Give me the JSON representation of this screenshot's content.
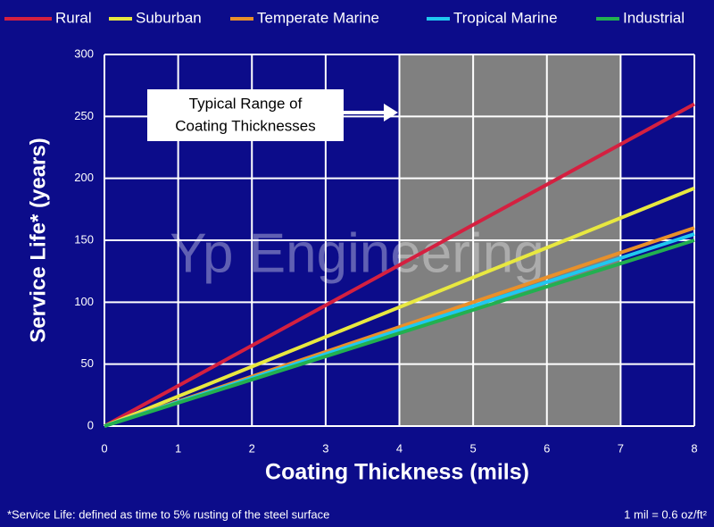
{
  "chart_data": {
    "type": "line",
    "x": [
      0,
      8
    ],
    "series": [
      {
        "name": "Rural",
        "color": "#d42040",
        "values": [
          0,
          260
        ]
      },
      {
        "name": "Suburban",
        "color": "#e8e840",
        "values": [
          0,
          192
        ]
      },
      {
        "name": "Temperate Marine",
        "color": "#e8902a",
        "values": [
          0,
          160
        ]
      },
      {
        "name": "Tropical Marine",
        "color": "#20c8f0",
        "values": [
          0,
          155
        ]
      },
      {
        "name": "Industrial",
        "color": "#22b050",
        "values": [
          0,
          150
        ]
      }
    ],
    "xlim": [
      0,
      8
    ],
    "xticks": [
      0,
      1,
      2,
      3,
      4,
      5,
      6,
      7,
      8
    ],
    "ylim": [
      0,
      300
    ],
    "yticks": [
      0,
      50,
      100,
      150,
      200,
      250,
      300
    ],
    "grid": true,
    "x_label": "Coating Thickness (mils)",
    "y_label": "Service Life* (years)",
    "legend": "top",
    "highlight": {
      "range": [
        4,
        7
      ],
      "color": "#808080",
      "label": [
        "Typical Range of",
        "Coating Thicknesses"
      ]
    },
    "watermark": "Yp Engineering",
    "footnote": "*Service Life:  defined as time to 5% rusting of the steel surface",
    "unit_note": "1 mil = 0.6 oz/ft²"
  }
}
